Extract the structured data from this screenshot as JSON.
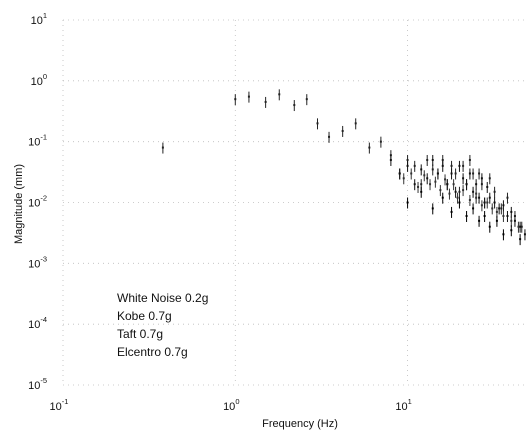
{
  "chart_data": {
    "type": "scatter",
    "title": "",
    "xlabel": "Frequency (Hz)",
    "ylabel": "Magnitude (mm)",
    "xscale": "log",
    "yscale": "log",
    "xlim": [
      0.1,
      50
    ],
    "ylim": [
      1e-05,
      10
    ],
    "grid": true,
    "legend_position": "bottom-left",
    "x_ticks": [
      {
        "base": "10",
        "exp": "-1"
      },
      {
        "base": "10",
        "exp": "0"
      },
      {
        "base": "10",
        "exp": "1"
      }
    ],
    "y_ticks": [
      {
        "base": "10",
        "exp": "1"
      },
      {
        "base": "10",
        "exp": "0"
      },
      {
        "base": "10",
        "exp": "-1"
      },
      {
        "base": "10",
        "exp": "-2"
      },
      {
        "base": "10",
        "exp": "-3"
      },
      {
        "base": "10",
        "exp": "-4"
      },
      {
        "base": "10",
        "exp": "-5"
      }
    ],
    "legend": [
      "White Noise 0.2g",
      "Kobe 0.7g",
      "Taft 0.7g",
      "Elcentro 0.7g"
    ],
    "series": [
      {
        "name": "White Noise 0.2g",
        "color": "#222222",
        "x": [
          0.38,
          1.0,
          1.2,
          1.5,
          1.8,
          2.2,
          2.6,
          3.0,
          3.5,
          4.2,
          5.0,
          6.0,
          7.0,
          8.0,
          9.0,
          10.0,
          11.0,
          12.0,
          13.0,
          14.0,
          15.0,
          16.0,
          17.0,
          18.0,
          19.0,
          20.0,
          21.0,
          22.0,
          23.0,
          24.0,
          25.0,
          26.0,
          27.0,
          28.0,
          30.0,
          32.0,
          35.0,
          38.0,
          42.0,
          46.0
        ],
        "y": [
          0.08,
          0.5,
          0.55,
          0.45,
          0.6,
          0.4,
          0.5,
          0.2,
          0.12,
          0.15,
          0.2,
          0.08,
          0.1,
          0.06,
          0.03,
          0.05,
          0.04,
          0.02,
          0.05,
          0.035,
          0.03,
          0.05,
          0.02,
          0.04,
          0.03,
          0.015,
          0.04,
          0.02,
          0.05,
          0.03,
          0.012,
          0.03,
          0.02,
          0.01,
          0.025,
          0.015,
          0.008,
          0.012,
          0.006,
          0.004
        ]
      },
      {
        "name": "Kobe 0.7g",
        "color": "#111111",
        "x": [
          8.0,
          9.0,
          10.0,
          11.0,
          12.0,
          13.0,
          14.0,
          15.0,
          16.0,
          17.0,
          18.0,
          19.0,
          20.0,
          21.0,
          22.0,
          23.0,
          24.0,
          25.0,
          26.0,
          27.0,
          28.0,
          29.0,
          30.0,
          32.0,
          34.0,
          36.0,
          38.0,
          40.0,
          42.0,
          45.0,
          48.0
        ],
        "y": [
          0.05,
          0.03,
          0.04,
          0.02,
          0.035,
          0.025,
          0.05,
          0.03,
          0.04,
          0.02,
          0.03,
          0.015,
          0.04,
          0.025,
          0.02,
          0.03,
          0.015,
          0.02,
          0.012,
          0.025,
          0.01,
          0.018,
          0.012,
          0.01,
          0.008,
          0.009,
          0.006,
          0.007,
          0.005,
          0.004,
          0.003
        ]
      },
      {
        "name": "Taft 0.7g",
        "color": "#333333",
        "x": [
          9.5,
          10.5,
          11.5,
          12.5,
          13.5,
          14.5,
          15.5,
          16.5,
          17.5,
          18.5,
          19.5,
          21.0,
          23.0,
          25.0,
          27.0,
          29.0,
          31.0,
          33.0,
          36.0,
          40.0,
          44.0
        ],
        "y": [
          0.025,
          0.03,
          0.018,
          0.028,
          0.02,
          0.022,
          0.016,
          0.024,
          0.014,
          0.02,
          0.012,
          0.016,
          0.011,
          0.014,
          0.009,
          0.01,
          0.008,
          0.007,
          0.006,
          0.005,
          0.004
        ]
      },
      {
        "name": "Elcentro 0.7g",
        "color": "#000000",
        "x": [
          10.0,
          12.0,
          14.0,
          16.0,
          18.0,
          20.0,
          22.0,
          24.0,
          26.0,
          28.0,
          30.0,
          33.0,
          36.0,
          40.0,
          45.0
        ],
        "y": [
          0.01,
          0.015,
          0.008,
          0.012,
          0.007,
          0.01,
          0.006,
          0.008,
          0.005,
          0.006,
          0.004,
          0.005,
          0.003,
          0.0035,
          0.0025
        ]
      }
    ]
  }
}
